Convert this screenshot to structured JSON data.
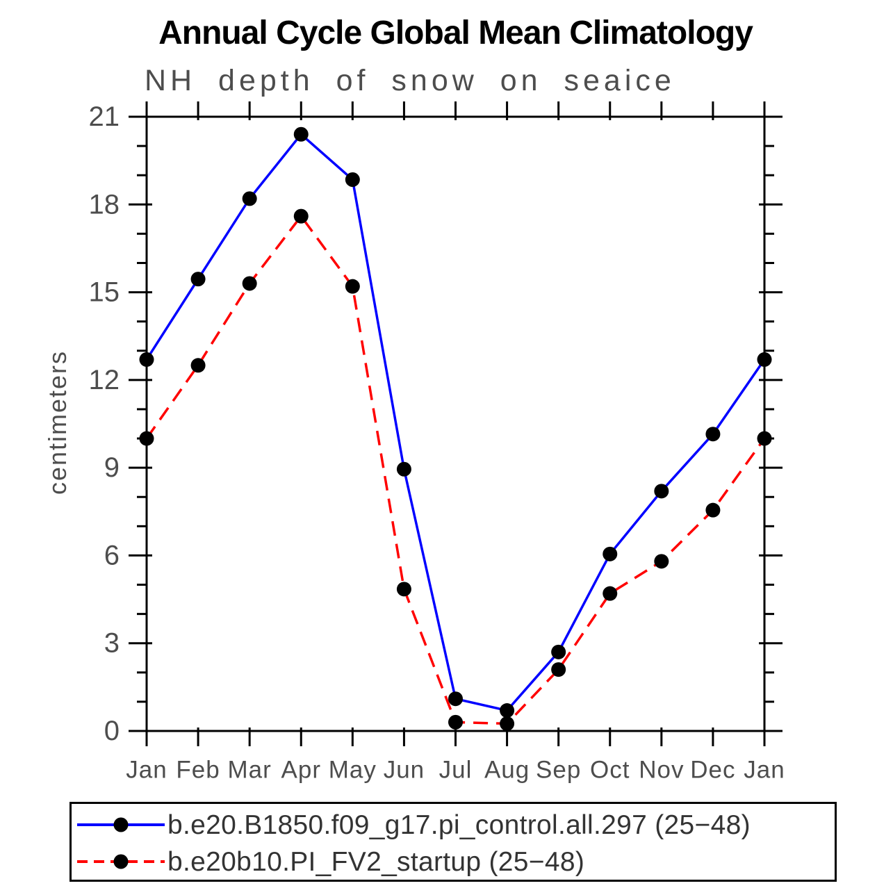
{
  "chart_data": {
    "type": "line",
    "title": "Annual Cycle Global Mean Climatology",
    "subtitle": "NH depth of snow on seaice",
    "xlabel": "",
    "ylabel": "centimeters",
    "categories": [
      "Jan",
      "Feb",
      "Mar",
      "Apr",
      "May",
      "Jun",
      "Jul",
      "Aug",
      "Sep",
      "Oct",
      "Nov",
      "Dec",
      "Jan"
    ],
    "ylim": [
      0,
      21
    ],
    "yticks": [
      0,
      3,
      6,
      9,
      12,
      15,
      18,
      21
    ],
    "minor_tick_step": 1,
    "grid": false,
    "legend_position": "bottom-box",
    "axis_color": "#000000",
    "marker_color": "#000000",
    "series": [
      {
        "name": "b.e20.B1850.f09_g17.pi_control.all.297 (25−48)",
        "color": "#0000ff",
        "line_style": "solid",
        "marker": "circle",
        "values": [
          12.7,
          15.45,
          18.2,
          20.4,
          18.85,
          8.95,
          1.1,
          0.7,
          2.7,
          6.05,
          8.2,
          10.15,
          12.7
        ]
      },
      {
        "name": "b.e20b10.PI_FV2_startup (25−48)",
        "color": "#ff0000",
        "line_style": "dashed",
        "marker": "circle",
        "values": [
          10.0,
          12.5,
          15.3,
          17.6,
          15.2,
          4.85,
          0.3,
          0.25,
          2.1,
          4.7,
          5.8,
          7.55,
          10.0
        ]
      }
    ]
  }
}
